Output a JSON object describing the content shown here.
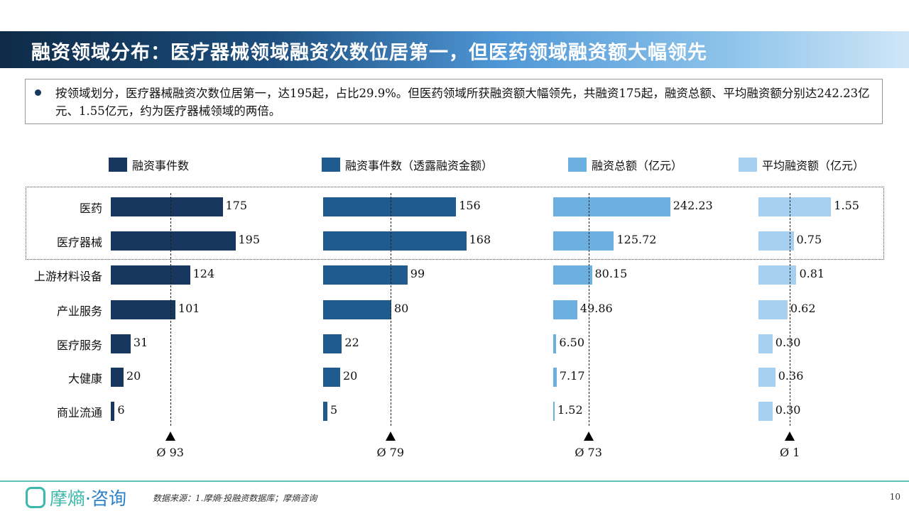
{
  "title": "融资领域分布：医疗器械领域融资次数位居第一，但医药领域融资额大幅领先",
  "summary": "按领域划分，医疗器械融资次数位居第一，达195起，占比29.9%。但医药领域所获融资额大幅领先，共融资175起，融资总额、平均融资额分别达242.23亿元、1.55亿元，约为医疗器械领域的两倍。",
  "footer": {
    "logo": "摩熵·咨询",
    "source": "数据来源：1.摩熵·投融资数据库；摩熵咨询",
    "page": "10"
  },
  "chart_data": {
    "type": "bar",
    "orientation": "horizontal",
    "categories": [
      "医药",
      "医疗器械",
      "上游材料设备",
      "产业服务",
      "医疗服务",
      "大健康",
      "商业流通"
    ],
    "highlighted_categories": [
      "医药",
      "医疗器械"
    ],
    "series": [
      {
        "name": "融资事件数",
        "color": "#17375e",
        "values": [
          175,
          195,
          124,
          101,
          31,
          20,
          6
        ],
        "labels": [
          "175",
          "195",
          "124",
          "101",
          "31",
          "20",
          "6"
        ],
        "avg": 93,
        "avg_label": "Ø 93"
      },
      {
        "name": "融资事件数（透露融资金额）",
        "color": "#1f5b8e",
        "values": [
          156,
          168,
          99,
          80,
          22,
          20,
          5
        ],
        "labels": [
          "156",
          "168",
          "99",
          "80",
          "22",
          "20",
          "5"
        ],
        "avg": 79,
        "avg_label": "Ø 79"
      },
      {
        "name": "融资总额（亿元）",
        "color": "#6cb0e2",
        "values": [
          242.23,
          125.72,
          80.15,
          49.86,
          6.5,
          7.17,
          1.52
        ],
        "labels": [
          "242.23",
          "125.72",
          "80.15",
          "49.86",
          "6.50",
          "7.17",
          "1.52"
        ],
        "avg": 73,
        "avg_label": "Ø 73"
      },
      {
        "name": "平均融资额（亿元）",
        "color": "#a6cff0",
        "values": [
          1.55,
          0.75,
          0.81,
          0.62,
          0.3,
          0.36,
          0.3
        ],
        "labels": [
          "1.55",
          "0.75",
          "0.81",
          "0.62",
          "0.30",
          "0.36",
          "0.30"
        ],
        "avg": 0.67,
        "avg_label": "Ø 1"
      }
    ]
  }
}
